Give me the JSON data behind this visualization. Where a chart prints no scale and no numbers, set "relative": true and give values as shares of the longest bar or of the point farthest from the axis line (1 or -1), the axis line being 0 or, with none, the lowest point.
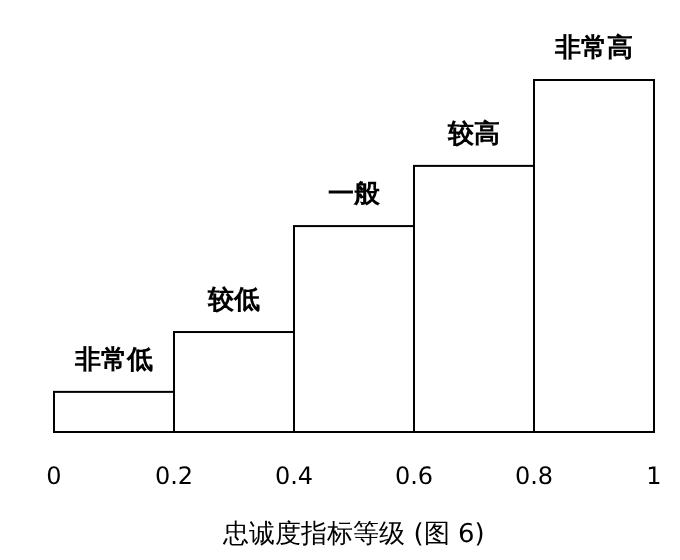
{
  "chart_data": {
    "type": "bar",
    "relative": true,
    "x": [
      0.1,
      0.3,
      0.5,
      0.7,
      0.9
    ],
    "values": [
      0.114,
      0.284,
      0.585,
      0.756,
      1
    ],
    "annotations": [
      "非常低",
      "较低",
      "一般",
      "较高",
      "非常高"
    ],
    "color": "#ffffff",
    "xlim": [
      0,
      1
    ],
    "xticks": [
      {
        "value": 0,
        "label": "0"
      },
      {
        "value": 0.2,
        "label": "0.2"
      },
      {
        "value": 0.4,
        "label": "0.4"
      },
      {
        "value": 0.6,
        "label": "0.6"
      },
      {
        "value": 0.8,
        "label": "0.8"
      },
      {
        "value": 1,
        "label": "1"
      }
    ],
    "xlabel": "忠诚度指标等级 (图 6)"
  }
}
